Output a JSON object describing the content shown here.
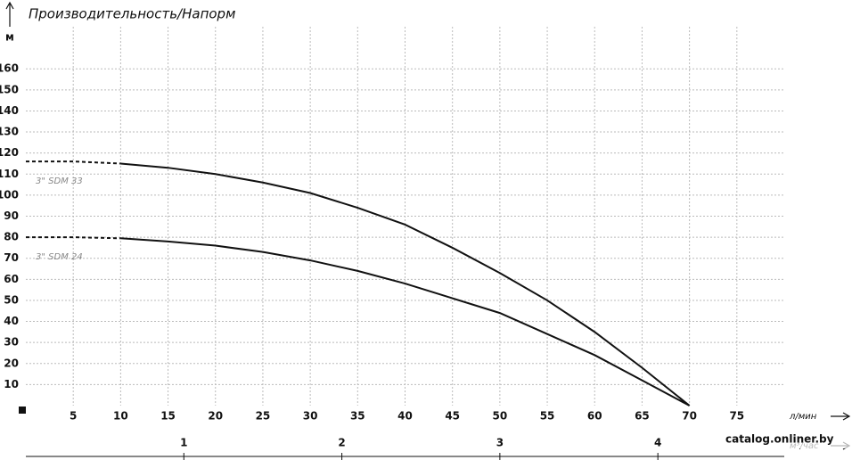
{
  "chart_data": {
    "type": "line",
    "title": "Производительность/Напорм",
    "y_label": "м",
    "x_label": "л/мин",
    "x2_label": "м³/час",
    "watermark": "catalog.onliner.by",
    "x": [
      0,
      5,
      10,
      15,
      20,
      25,
      30,
      35,
      40,
      45,
      50,
      55,
      60,
      65,
      70
    ],
    "series": [
      {
        "name": "3\" SDM 33",
        "color": "#111111",
        "values": [
          116,
          116,
          115,
          113,
          110,
          106,
          101,
          94,
          86,
          75,
          63,
          50,
          35,
          18,
          0
        ]
      },
      {
        "name": "3\" SDM 24",
        "color": "#111111",
        "values": [
          80,
          80,
          79.5,
          78,
          76,
          73,
          69,
          64,
          58,
          51,
          44,
          34,
          24,
          12,
          0
        ]
      }
    ],
    "dashed_until_x": 10,
    "xlim": [
      0,
      80
    ],
    "xticks": [
      5,
      10,
      15,
      20,
      25,
      30,
      35,
      40,
      45,
      50,
      55,
      60,
      65,
      70,
      75
    ],
    "ylim": [
      0,
      180
    ],
    "yticks": [
      10,
      20,
      30,
      40,
      50,
      60,
      70,
      80,
      90,
      100,
      110,
      120,
      130,
      140,
      150,
      160
    ],
    "x2lim": [
      0,
      4.8
    ],
    "x2ticks": [
      1,
      2,
      3,
      4
    ],
    "grid": true
  }
}
